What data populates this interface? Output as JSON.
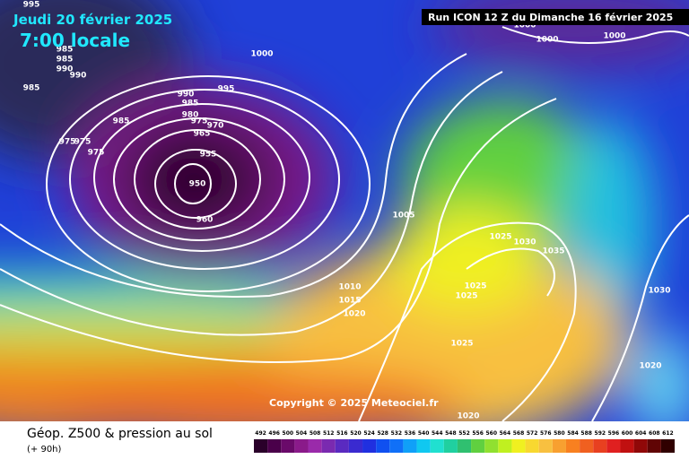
{
  "header": {
    "date": "Jeudi 20 février 2025",
    "time": "7:00 locale",
    "run": "Run ICON 12 Z du Dimanche 16 février 2025"
  },
  "copyright": "Copyright © 2025 Meteociel.fr",
  "footer": {
    "title": "Géop. Z500 & pression au sol",
    "lead": "(+ 90h)"
  },
  "isobar_labels": [
    995,
    1000,
    1000,
    1000,
    985,
    985,
    990,
    990,
    985,
    1000,
    990,
    995,
    985,
    980,
    975,
    970,
    965,
    985,
    975,
    975,
    975,
    955,
    950,
    960,
    1005,
    1025,
    1030,
    1035,
    1010,
    1015,
    1020,
    1025,
    1025,
    1025,
    1030,
    1020,
    1020
  ],
  "colorbar": {
    "levels": [
      492,
      496,
      500,
      504,
      508,
      512,
      516,
      520,
      524,
      528,
      532,
      536,
      540,
      544,
      548,
      552,
      556,
      560,
      564,
      568,
      572,
      576,
      580,
      584,
      588,
      592,
      596,
      600,
      604,
      608,
      612
    ],
    "colors": [
      "#2a002a",
      "#4a004a",
      "#6a0a6a",
      "#8a1a8a",
      "#9a2aaa",
      "#7a2ab0",
      "#5a2ac0",
      "#3a2ad0",
      "#2030e0",
      "#1050f0",
      "#1070f8",
      "#10a0f8",
      "#10c8f0",
      "#20e0d0",
      "#20d0a0",
      "#30c070",
      "#60d040",
      "#90e030",
      "#c0f020",
      "#f0f020",
      "#f8d830",
      "#f8c040",
      "#f8a030",
      "#f88020",
      "#f06020",
      "#e84020",
      "#e02020",
      "#c01010",
      "#900808",
      "#600404",
      "#300000"
    ]
  }
}
